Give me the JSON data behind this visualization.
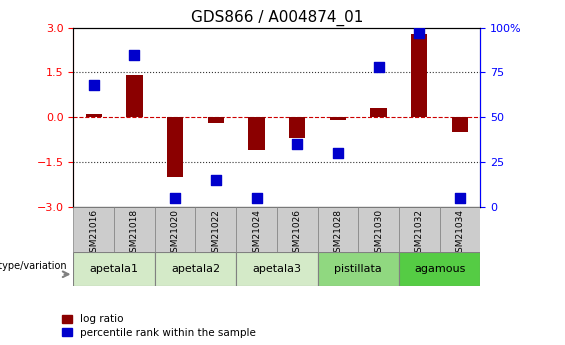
{
  "title": "GDS866 / A004874_01",
  "samples": [
    "GSM21016",
    "GSM21018",
    "GSM21020",
    "GSM21022",
    "GSM21024",
    "GSM21026",
    "GSM21028",
    "GSM21030",
    "GSM21032",
    "GSM21034"
  ],
  "log_ratio": [
    0.1,
    1.4,
    -2.0,
    -0.2,
    -1.1,
    -0.7,
    -0.1,
    0.3,
    2.8,
    -0.5
  ],
  "percentile_rank": [
    68,
    85,
    5,
    15,
    5,
    35,
    30,
    78,
    97,
    5
  ],
  "groups": [
    {
      "name": "apetala1",
      "count": 2,
      "color": "#d4eac8"
    },
    {
      "name": "apetala2",
      "count": 2,
      "color": "#d4eac8"
    },
    {
      "name": "apetala3",
      "count": 2,
      "color": "#d4eac8"
    },
    {
      "name": "pistillata",
      "count": 2,
      "color": "#90d880"
    },
    {
      "name": "agamous",
      "count": 2,
      "color": "#55cc44"
    }
  ],
  "ylim_left": [
    -3,
    3
  ],
  "ylim_right": [
    0,
    100
  ],
  "yticks_left": [
    -3,
    -1.5,
    0,
    1.5,
    3
  ],
  "yticks_right": [
    0,
    25,
    50,
    75,
    100
  ],
  "bar_color": "#8b0000",
  "dot_color": "#0000cc",
  "zero_line_color": "#cc0000",
  "dotted_line_color": "#333333",
  "sample_box_color": "#cccccc",
  "bar_width": 0.4,
  "dot_size": 45,
  "legend_bar_label": "log ratio",
  "legend_dot_label": "percentile rank within the sample"
}
